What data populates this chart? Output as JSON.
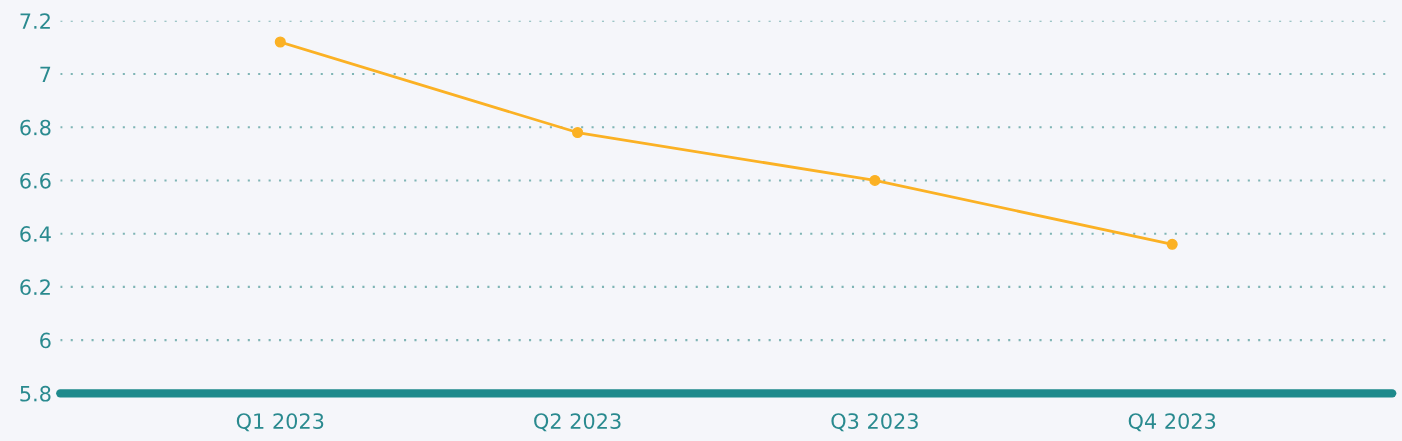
{
  "chart_data": {
    "type": "line",
    "categories": [
      "Q1 2023",
      "Q2 2023",
      "Q3 2023",
      "Q4 2023"
    ],
    "series": [
      {
        "color": "#fbb124",
        "values": [
          7.12,
          6.78,
          6.6,
          6.36
        ]
      }
    ],
    "ylim": [
      5.8,
      7.2
    ],
    "yticks": [
      5.8,
      6,
      6.2,
      6.4,
      6.6,
      6.8,
      7,
      7.2
    ],
    "grid": "y",
    "marker": "circle",
    "line_style": "solid",
    "legend": false
  }
}
